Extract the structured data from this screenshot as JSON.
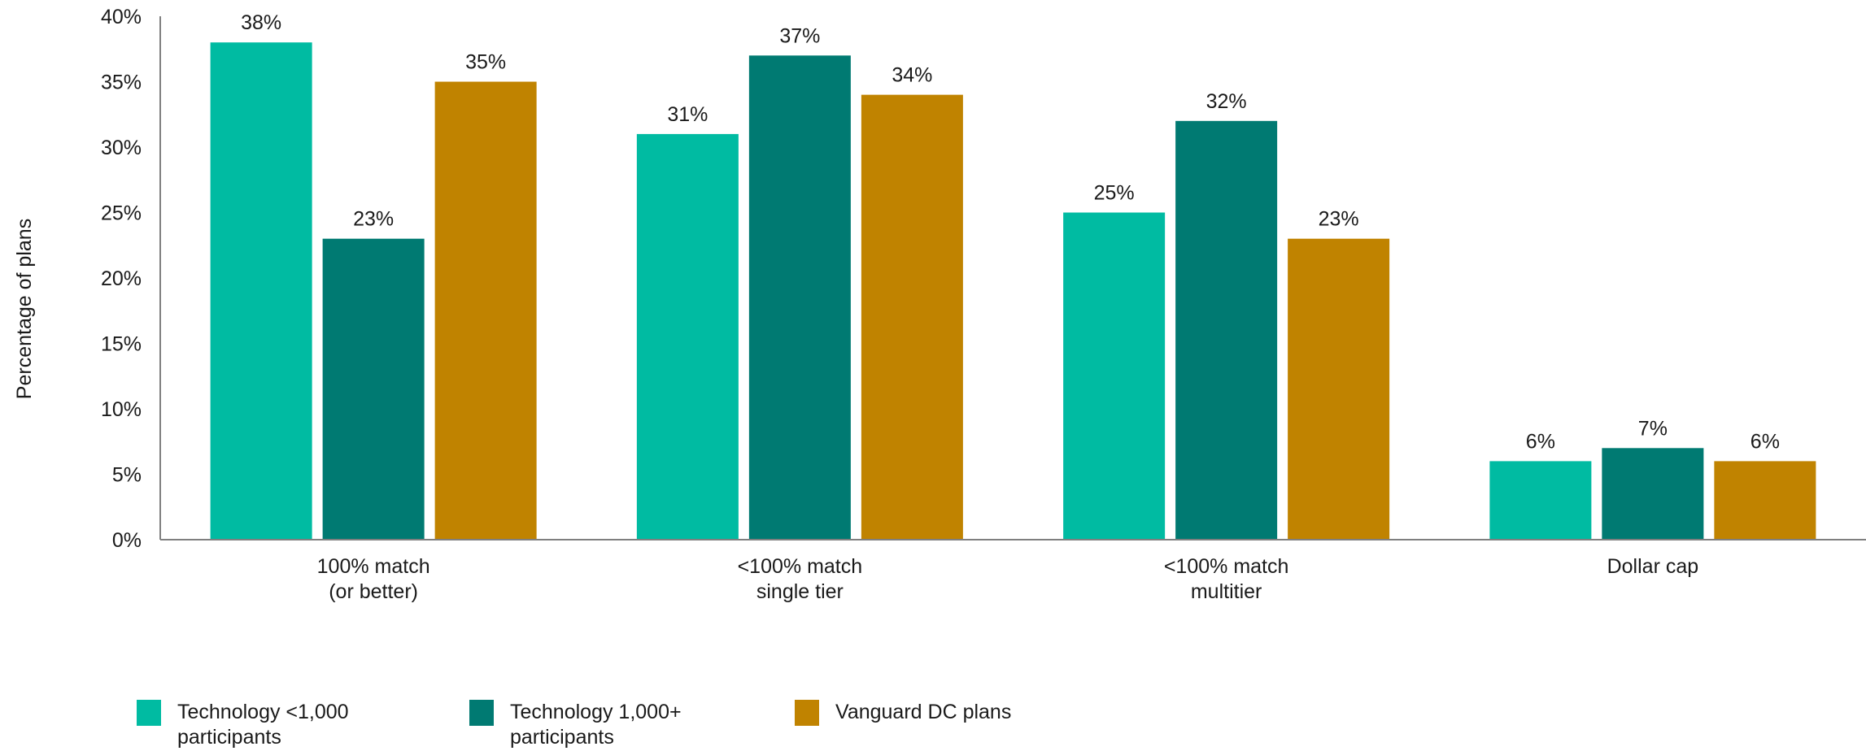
{
  "chart_data": {
    "type": "bar",
    "title": "",
    "xlabel": "",
    "ylabel": "Percentage of plans",
    "ylim": [
      0,
      40
    ],
    "yticks": [
      "0%",
      "5%",
      "10%",
      "15%",
      "20%",
      "25%",
      "30%",
      "35%",
      "40%"
    ],
    "categories": [
      [
        "100% match",
        "(or better)"
      ],
      [
        "<100% match",
        "single tier"
      ],
      [
        "<100% match",
        "multitier"
      ],
      [
        "Dollar cap"
      ]
    ],
    "series": [
      {
        "name": "Technology  <1,000 participants",
        "color": "#00bba2",
        "values": [
          38,
          31,
          25,
          6
        ]
      },
      {
        "name": "Technology 1,000+ participants",
        "color": "#007a72",
        "values": [
          23,
          37,
          32,
          7
        ]
      },
      {
        "name": "Vanguard DC plans",
        "color": "#c08300",
        "values": [
          35,
          34,
          23,
          6
        ]
      }
    ],
    "value_labels": [
      [
        "38%",
        "31%",
        "25%",
        "6%"
      ],
      [
        "23%",
        "37%",
        "32%",
        "7%"
      ],
      [
        "35%",
        "34%",
        "23%",
        "6%"
      ]
    ],
    "grid": false,
    "legend_position": "bottom"
  }
}
